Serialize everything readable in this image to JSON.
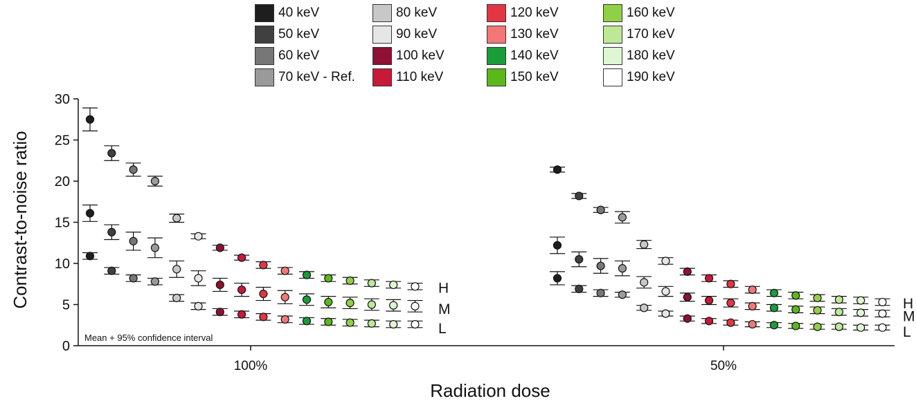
{
  "chart_data": {
    "type": "scatter",
    "title": "",
    "xlabel": "Radiation dose",
    "ylabel": "Contrast-to-noise ratio",
    "ylim": [
      0,
      30
    ],
    "yticks": [
      "0",
      "5",
      "10",
      "15",
      "20",
      "25",
      "30"
    ],
    "groups": [
      "100%",
      "50%"
    ],
    "annotation": "Mean + 95% confidence interval",
    "level_labels": [
      "H",
      "M",
      "L"
    ],
    "legend_position": "top",
    "energies": [
      {
        "label": "40 keV",
        "color": "#1e1e1e"
      },
      {
        "label": "50 keV",
        "color": "#404040"
      },
      {
        "label": "60 keV",
        "color": "#777777"
      },
      {
        "label": "70 keV - Ref.",
        "color": "#9a9a9a"
      },
      {
        "label": "80 keV",
        "color": "#c8c8c8"
      },
      {
        "label": "90 keV",
        "color": "#e6e6e6"
      },
      {
        "label": "100 keV",
        "color": "#8e1033"
      },
      {
        "label": "110 keV",
        "color": "#c8193a"
      },
      {
        "label": "120 keV",
        "color": "#e23645"
      },
      {
        "label": "130 keV",
        "color": "#f47777"
      },
      {
        "label": "140 keV",
        "color": "#1a9c3a"
      },
      {
        "label": "150 keV",
        "color": "#5cb81a"
      },
      {
        "label": "160 keV",
        "color": "#8fd044"
      },
      {
        "label": "170 keV",
        "color": "#bde896"
      },
      {
        "label": "180 keV",
        "color": "#def7d2"
      },
      {
        "label": "190 keV",
        "color": "#ffffff"
      }
    ],
    "series": [
      {
        "group": "100%",
        "level": "H",
        "mean": [
          27.5,
          23.4,
          21.4,
          20.0,
          15.5,
          13.3,
          11.9,
          10.7,
          9.8,
          9.1,
          8.6,
          8.2,
          7.9,
          7.6,
          7.4,
          7.2
        ],
        "ci": [
          1.4,
          0.9,
          0.8,
          0.6,
          0.5,
          0.3,
          0.3,
          0.3,
          0.4,
          0.4,
          0.4,
          0.4,
          0.4,
          0.4,
          0.4,
          0.4
        ]
      },
      {
        "group": "100%",
        "level": "M",
        "mean": [
          16.1,
          13.8,
          12.7,
          11.9,
          9.3,
          8.2,
          7.4,
          6.8,
          6.3,
          5.9,
          5.6,
          5.3,
          5.2,
          5.0,
          4.9,
          4.8
        ],
        "ci": [
          1.0,
          0.9,
          1.1,
          1.2,
          1.0,
          0.9,
          0.8,
          0.8,
          0.8,
          0.8,
          0.7,
          0.7,
          0.7,
          0.7,
          0.7,
          0.7
        ]
      },
      {
        "group": "100%",
        "level": "L",
        "mean": [
          10.9,
          9.1,
          8.2,
          7.8,
          5.8,
          4.8,
          4.1,
          3.8,
          3.5,
          3.2,
          3.0,
          2.9,
          2.8,
          2.7,
          2.6,
          2.6
        ],
        "ci": [
          0.4,
          0.4,
          0.4,
          0.4,
          0.4,
          0.4,
          0.4,
          0.4,
          0.4,
          0.4,
          0.4,
          0.4,
          0.4,
          0.4,
          0.4,
          0.4
        ]
      },
      {
        "group": "50%",
        "level": "H",
        "mean": [
          21.4,
          18.2,
          16.5,
          15.6,
          12.3,
          10.3,
          9.0,
          8.2,
          7.5,
          6.8,
          6.4,
          6.1,
          5.8,
          5.6,
          5.5,
          5.3
        ],
        "ci": [
          0.3,
          0.3,
          0.3,
          0.7,
          0.5,
          0.4,
          0.4,
          0.4,
          0.4,
          0.4,
          0.4,
          0.4,
          0.4,
          0.4,
          0.4,
          0.4
        ]
      },
      {
        "group": "50%",
        "level": "M",
        "mean": [
          12.2,
          10.5,
          9.7,
          9.4,
          7.7,
          6.6,
          5.9,
          5.5,
          5.2,
          4.8,
          4.6,
          4.4,
          4.3,
          4.1,
          4.0,
          3.9
        ],
        "ci": [
          1.0,
          0.9,
          0.9,
          0.9,
          0.7,
          0.6,
          0.5,
          0.5,
          0.5,
          0.4,
          0.4,
          0.4,
          0.4,
          0.4,
          0.4,
          0.4
        ]
      },
      {
        "group": "50%",
        "level": "L",
        "mean": [
          8.2,
          6.9,
          6.4,
          6.2,
          4.6,
          3.9,
          3.3,
          3.0,
          2.8,
          2.6,
          2.5,
          2.4,
          2.3,
          2.3,
          2.2,
          2.2
        ],
        "ci": [
          0.8,
          0.4,
          0.4,
          0.3,
          0.3,
          0.3,
          0.3,
          0.3,
          0.3,
          0.3,
          0.3,
          0.3,
          0.3,
          0.3,
          0.3,
          0.3
        ]
      }
    ]
  }
}
